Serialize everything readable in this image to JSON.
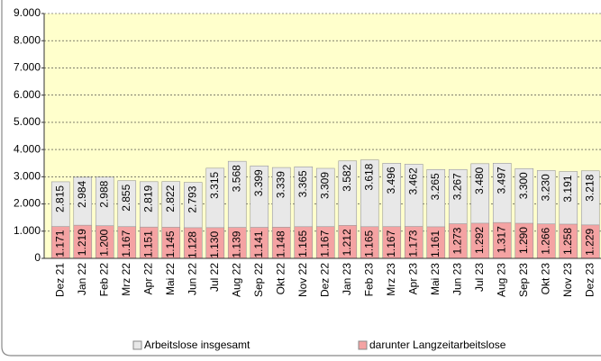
{
  "chart_data": {
    "type": "bar",
    "categories": [
      "Dez 21",
      "Jan 22",
      "Feb 22",
      "Mrz 22",
      "Apr 22",
      "Mai 22",
      "Jun 22",
      "Jul 22",
      "Aug 22",
      "Sep 22",
      "Okt 22",
      "Nov 22",
      "Dez 22",
      "Jan 23",
      "Feb 23",
      "Mrz 23",
      "Apr 23",
      "Mai 23",
      "Jun 23",
      "Jul 23",
      "Aug 23",
      "Sep 23",
      "Okt 23",
      "Nov 23",
      "Dez 23"
    ],
    "series": [
      {
        "name": "Arbeitslose insgesamt",
        "color": "#e8e8e8",
        "values": [
          2815,
          2984,
          2988,
          2855,
          2819,
          2822,
          2793,
          3315,
          3568,
          3399,
          3339,
          3365,
          3309,
          3582,
          3618,
          3496,
          3462,
          3265,
          3267,
          3480,
          3497,
          3300,
          3230,
          3191,
          3218
        ],
        "value_labels": [
          "2.815",
          "2.984",
          "2.988",
          "2.855",
          "2.819",
          "2.822",
          "2.793",
          "3.315",
          "3.568",
          "3.399",
          "3.339",
          "3.365",
          "3.309",
          "3.582",
          "3.618",
          "3.496",
          "3.462",
          "3.265",
          "3.267",
          "3.480",
          "3.497",
          "3.300",
          "3.230",
          "3.191",
          "3.218"
        ]
      },
      {
        "name": "darunter Langzeitarbeitslose",
        "color": "#f4a3a3",
        "values": [
          1171,
          1219,
          1200,
          1167,
          1151,
          1145,
          1128,
          1130,
          1139,
          1141,
          1148,
          1165,
          1167,
          1212,
          1165,
          1167,
          1173,
          1161,
          1273,
          1292,
          1317,
          1290,
          1266,
          1258,
          1229
        ],
        "value_labels": [
          "1.171",
          "1.219",
          "1.200",
          "1.167",
          "1.151",
          "1.145",
          "1.128",
          "1.130",
          "1.139",
          "1.141",
          "1.148",
          "1.165",
          "1.167",
          "1.212",
          "1.165",
          "1.167",
          "1.173",
          "1.161",
          "1.273",
          "1.292",
          "1.317",
          "1.290",
          "1.266",
          "1.258",
          "1.229"
        ]
      }
    ],
    "ylim": [
      0,
      9000
    ],
    "yticks": [
      0,
      {
        "value": 1000,
        "label": "1.000"
      },
      {
        "value": 2000,
        "label": "2.000"
      },
      {
        "value": 3000,
        "label": "3.000"
      },
      {
        "value": 4000,
        "label": "4.000"
      },
      {
        "value": 5000,
        "label": "5.000"
      },
      {
        "value": 6000,
        "label": "6.000"
      },
      {
        "value": 7000,
        "label": "7.000"
      },
      {
        "value": 8000,
        "label": "8.000"
      },
      {
        "value": 9000,
        "label": "9.000"
      }
    ],
    "grid": true
  }
}
